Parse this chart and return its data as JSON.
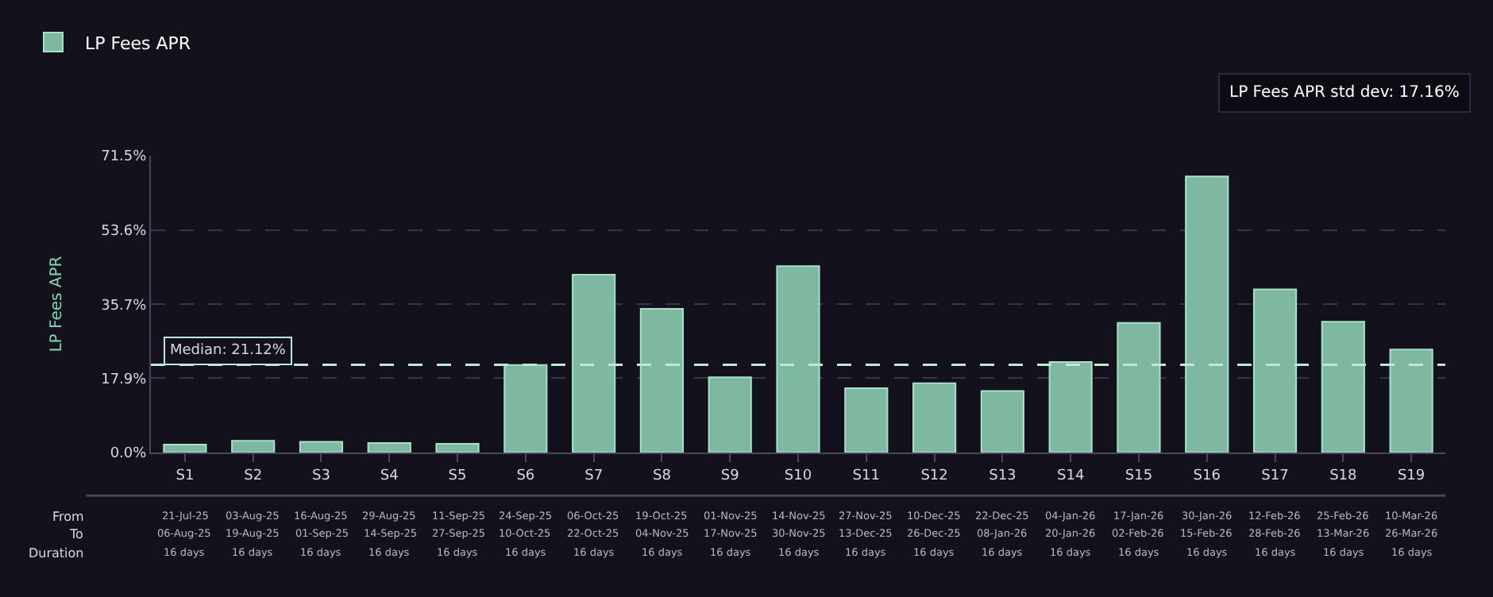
{
  "chart_data": {
    "type": "bar",
    "ylabel": "LP Fees APR",
    "categories": [
      "S1",
      "S2",
      "S3",
      "S4",
      "S5",
      "S6",
      "S7",
      "S8",
      "S9",
      "S10",
      "S11",
      "S12",
      "S13",
      "S14",
      "S15",
      "S16",
      "S17",
      "S18",
      "S19"
    ],
    "series": [
      {
        "name": "LP Fees APR",
        "color": "#7fb8a1",
        "values": [
          1.9,
          2.8,
          2.6,
          2.3,
          2.1,
          21.1,
          42.8,
          34.6,
          18.1,
          44.9,
          15.5,
          16.7,
          14.8,
          21.8,
          31.2,
          66.5,
          39.3,
          31.5,
          24.8
        ]
      }
    ],
    "ylim": [
      0,
      71.5
    ],
    "yticks": [
      {
        "value": 0,
        "label": "0.0%"
      },
      {
        "value": 17.9,
        "label": "17.9%"
      },
      {
        "value": 35.7,
        "label": "35.7%"
      },
      {
        "value": 53.6,
        "label": "53.6%"
      },
      {
        "value": 71.5,
        "label": "71.5%"
      }
    ],
    "grid": "y",
    "legend": "top left",
    "ref_lines": [
      {
        "axis": "y",
        "value": 21.12,
        "label": "Median: 21.12%",
        "color": "#bfe8da",
        "line_style": "dashed"
      }
    ],
    "annotations": [
      "LP Fees APR std dev: 17.16%",
      "From",
      "To",
      "Duration",
      "21-Jul-25",
      "06-Aug-25",
      "16 days",
      "03-Aug-25",
      "19-Aug-25",
      "16 days",
      "16-Aug-25",
      "01-Sep-25",
      "16 days",
      "29-Aug-25",
      "14-Sep-25",
      "16 days",
      "11-Sep-25",
      "27-Sep-25",
      "16 days",
      "24-Sep-25",
      "10-Oct-25",
      "16 days",
      "06-Oct-25",
      "22-Oct-25",
      "16 days",
      "19-Oct-25",
      "04-Nov-25",
      "16 days",
      "01-Nov-25",
      "17-Nov-25",
      "16 days",
      "14-Nov-25",
      "30-Nov-25",
      "16 days",
      "27-Nov-25",
      "13-Dec-25",
      "16 days",
      "10-Dec-25",
      "26-Dec-25",
      "16 days",
      "22-Dec-25",
      "08-Jan-26",
      "16 days",
      "04-Jan-26",
      "20-Jan-26",
      "16 days",
      "17-Jan-26",
      "02-Feb-26",
      "16 days",
      "30-Jan-26",
      "15-Feb-26",
      "16 days",
      "12-Feb-26",
      "28-Feb-26",
      "16 days",
      "25-Feb-26",
      "13-Mar-26",
      "16 days",
      "10-Mar-26",
      "26-Mar-26",
      "16 days"
    ]
  }
}
